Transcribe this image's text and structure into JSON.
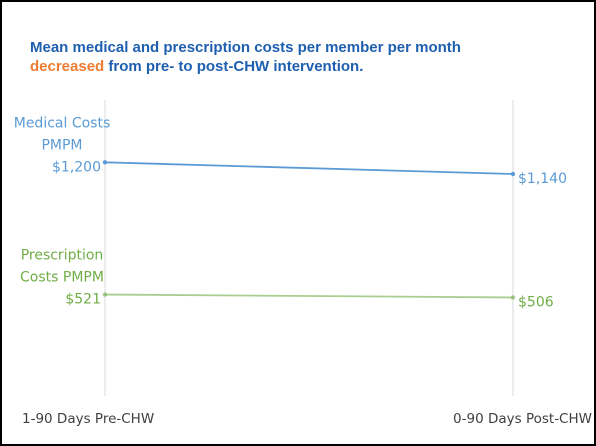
{
  "chart_data": {
    "type": "slope",
    "title": [
      "Mean medical and prescription costs per member per month",
      "decreased",
      "from pre- to post-CHW intervention."
    ],
    "title_color": "#1f5fb0",
    "title_highlight_color": "#ed7d31",
    "categories": [
      "1-90 Days Pre-CHW",
      "0-90 Days Post-CHW"
    ],
    "series": [
      {
        "name": "Medical Costs PMPM",
        "color": "#5b9bd5",
        "values": [
          1200,
          1140
        ],
        "value_labels": [
          "$1,200",
          "$1,140"
        ]
      },
      {
        "name": "Prescription Costs PMPM",
        "color": "#70ad47",
        "values": [
          521,
          506
        ],
        "value_labels": [
          "$521",
          "$506"
        ]
      }
    ],
    "ylim": [
      0,
      1520
    ],
    "grid": true
  }
}
